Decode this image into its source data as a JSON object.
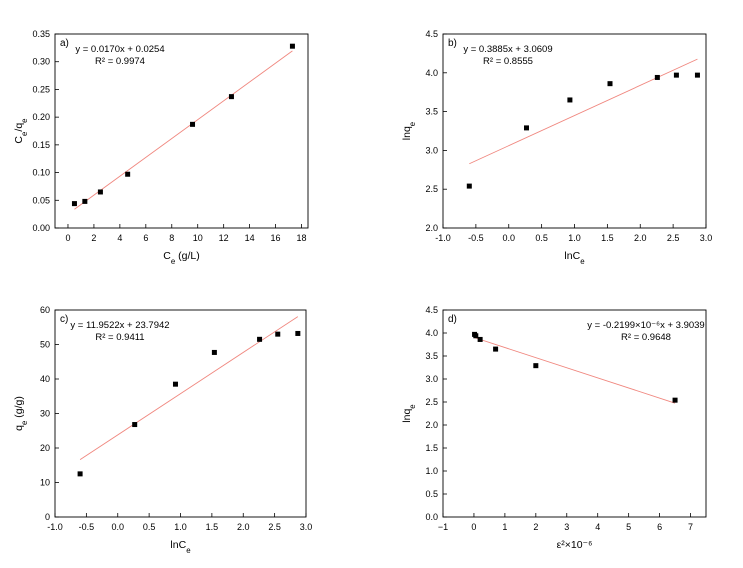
{
  "chart_data": [
    {
      "type": "scatter",
      "panel_label": "a)",
      "xlabel": "C_e (g/L)",
      "ylabel": "C_e/q_e",
      "xlim": [
        -1,
        18.5
      ],
      "ylim": [
        0,
        0.35
      ],
      "x_ticks": [
        0,
        2,
        4,
        6,
        8,
        10,
        12,
        14,
        16,
        18
      ],
      "y_ticks": [
        0.0,
        0.05,
        0.1,
        0.15,
        0.2,
        0.25,
        0.3,
        0.35
      ],
      "x_tick_labels": [
        "0",
        "2",
        "4",
        "6",
        "8",
        "10",
        "12",
        "14",
        "16",
        "18"
      ],
      "y_tick_labels": [
        "0.00",
        "0.05",
        "0.10",
        "0.15",
        "0.20",
        "0.25",
        "0.30",
        "0.35"
      ],
      "series": [
        {
          "x": [
            0.5,
            1.3,
            2.5,
            4.6,
            9.6,
            12.6,
            17.3
          ],
          "y": [
            0.044,
            0.048,
            0.065,
            0.097,
            0.187,
            0.237,
            0.328
          ]
        }
      ],
      "fit": {
        "slope": 0.017,
        "intercept": 0.0254,
        "x_range": [
          0.5,
          17.3
        ]
      },
      "equation": "y = 0.0170x + 0.0254",
      "r2_label": "R² = 0.9974",
      "annotation_anchor": "top-left",
      "marker_color": "#000000",
      "fit_color": "#f0877f"
    },
    {
      "type": "scatter",
      "panel_label": "b)",
      "xlabel": "lnC_e",
      "ylabel": "lnq_e",
      "xlim": [
        -1.0,
        3.0
      ],
      "ylim": [
        2.0,
        4.5
      ],
      "x_ticks": [
        -1.0,
        -0.5,
        0.0,
        0.5,
        1.0,
        1.5,
        2.0,
        2.5,
        3.0
      ],
      "y_ticks": [
        2.0,
        2.5,
        3.0,
        3.5,
        4.0,
        4.5
      ],
      "x_tick_labels": [
        "-1.0",
        "-0.5",
        "0.0",
        "0.5",
        "1.0",
        "1.5",
        "2.0",
        "2.5",
        "3.0"
      ],
      "y_tick_labels": [
        "2.0",
        "2.5",
        "3.0",
        "3.5",
        "4.0",
        "4.5"
      ],
      "series": [
        {
          "x": [
            -0.6,
            0.27,
            0.93,
            1.54,
            2.26,
            2.55,
            2.87
          ],
          "y": [
            2.54,
            3.29,
            3.65,
            3.86,
            3.94,
            3.97,
            3.97
          ]
        }
      ],
      "fit": {
        "slope": 0.3885,
        "intercept": 3.0609,
        "x_range": [
          -0.6,
          2.87
        ]
      },
      "equation": "y = 0.3885x + 3.0609",
      "r2_label": "R² = 0.8555",
      "annotation_anchor": "top-left",
      "marker_color": "#000000",
      "fit_color": "#f0877f"
    },
    {
      "type": "scatter",
      "panel_label": "c)",
      "xlabel": "lnC_e",
      "ylabel": "q_e (g/g)",
      "xlim": [
        -1.0,
        3.0
      ],
      "ylim": [
        0,
        60
      ],
      "x_ticks": [
        -1.0,
        -0.5,
        0.0,
        0.5,
        1.0,
        1.5,
        2.0,
        2.5,
        3.0
      ],
      "y_ticks": [
        0,
        10,
        20,
        30,
        40,
        50,
        60
      ],
      "x_tick_labels": [
        "-1.0",
        "-0.5",
        "0.0",
        "0.5",
        "1.0",
        "1.5",
        "2.0",
        "2.5",
        "3.0"
      ],
      "y_tick_labels": [
        "0",
        "10",
        "20",
        "30",
        "40",
        "50",
        "60"
      ],
      "series": [
        {
          "x": [
            -0.6,
            0.27,
            0.92,
            1.54,
            2.26,
            2.55,
            2.87
          ],
          "y": [
            12.5,
            26.8,
            38.5,
            47.7,
            51.5,
            53.0,
            53.2
          ]
        }
      ],
      "fit": {
        "slope": 11.9522,
        "intercept": 23.7942,
        "x_range": [
          -0.6,
          2.87
        ]
      },
      "equation": "y = 11.9522x + 23.7942",
      "r2_label": "R² = 0.9411",
      "annotation_anchor": "top-left",
      "marker_color": "#000000",
      "fit_color": "#f0877f"
    },
    {
      "type": "scatter",
      "panel_label": "d)",
      "xlabel": "ε²×10⁻⁶",
      "ylabel": "lnq_e",
      "xlim": [
        -1,
        7.5
      ],
      "ylim": [
        0,
        4.5
      ],
      "x_ticks": [
        -1,
        0,
        1,
        2,
        3,
        4,
        5,
        6,
        7
      ],
      "y_ticks": [
        0.0,
        0.5,
        1.0,
        1.5,
        2.0,
        2.5,
        3.0,
        3.5,
        4.0,
        4.5
      ],
      "x_tick_labels": [
        "−1",
        "0",
        "1",
        "2",
        "3",
        "4",
        "5",
        "6",
        "7"
      ],
      "y_tick_labels": [
        "0.0",
        "0.5",
        "1.0",
        "1.5",
        "2.0",
        "2.5",
        "3.0",
        "3.5",
        "4.0",
        "4.5"
      ],
      "series": [
        {
          "x": [
            0.02,
            0.06,
            0.2,
            0.7,
            2.0,
            6.5
          ],
          "y": [
            3.97,
            3.94,
            3.86,
            3.65,
            3.29,
            2.54
          ]
        }
      ],
      "fit": {
        "slope": -0.2199,
        "intercept": 3.9039,
        "x_range": [
          0.02,
          6.5
        ]
      },
      "equation": "y = -0.2199×10⁻⁶x + 3.9039",
      "r2_label": "R² = 0.9648",
      "annotation_anchor": "top-right",
      "marker_color": "#000000",
      "fit_color": "#f0877f"
    }
  ]
}
